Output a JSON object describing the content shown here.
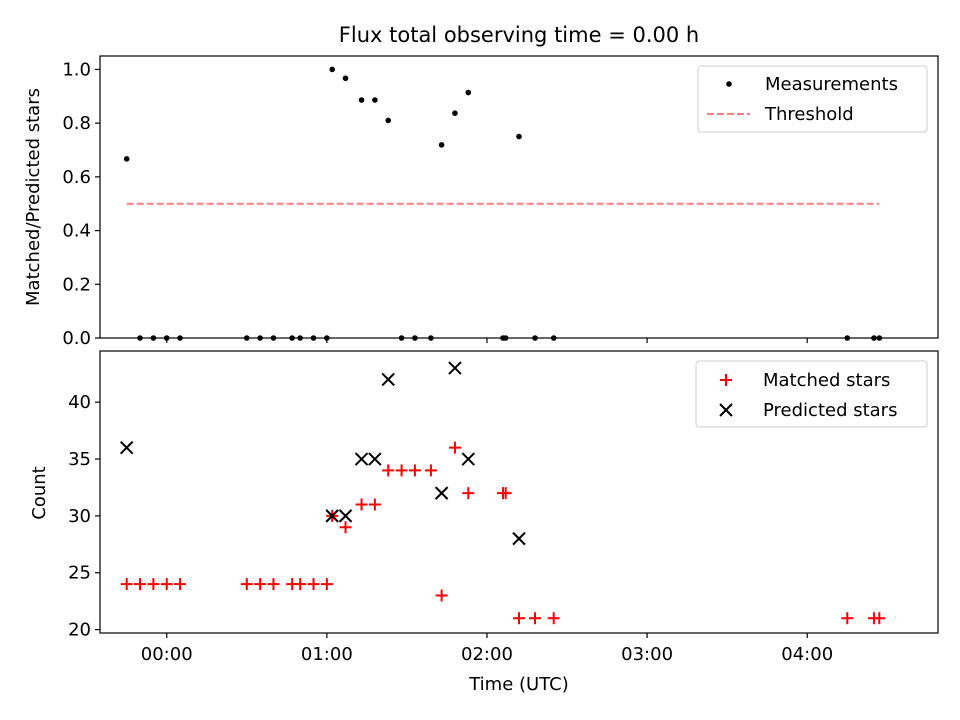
{
  "chart_data": [
    {
      "type": "scatter",
      "title": "Flux total observing time = 0.00 h",
      "xlabel": "",
      "ylabel": "Matched/Predicted stars",
      "xlim": [
        "23:35",
        "04:49"
      ],
      "ylim": [
        0.0,
        1.05
      ],
      "yticks": [
        "0.0",
        "0.2",
        "0.4",
        "0.6",
        "0.8",
        "1.0"
      ],
      "legend_position": "top-right",
      "series": [
        {
          "name": "Measurements",
          "marker": "dot",
          "color": "#000000",
          "points": [
            {
              "x": "23:45",
              "y": 0.667
            },
            {
              "x": "23:50",
              "y": 0.0
            },
            {
              "x": "23:55",
              "y": 0.0
            },
            {
              "x": "00:00",
              "y": 0.0
            },
            {
              "x": "00:05",
              "y": 0.0
            },
            {
              "x": "00:30",
              "y": 0.0
            },
            {
              "x": "00:35",
              "y": 0.0
            },
            {
              "x": "00:40",
              "y": 0.0
            },
            {
              "x": "00:47",
              "y": 0.0
            },
            {
              "x": "00:50",
              "y": 0.0
            },
            {
              "x": "00:55",
              "y": 0.0
            },
            {
              "x": "01:00",
              "y": 0.0
            },
            {
              "x": "01:02",
              "y": 1.0
            },
            {
              "x": "01:07",
              "y": 0.967
            },
            {
              "x": "01:13",
              "y": 0.886
            },
            {
              "x": "01:18",
              "y": 0.886
            },
            {
              "x": "01:23",
              "y": 0.81
            },
            {
              "x": "01:28",
              "y": 0.0
            },
            {
              "x": "01:33",
              "y": 0.0
            },
            {
              "x": "01:39",
              "y": 0.0
            },
            {
              "x": "01:43",
              "y": 0.719
            },
            {
              "x": "01:48",
              "y": 0.837
            },
            {
              "x": "01:53",
              "y": 0.914
            },
            {
              "x": "02:06",
              "y": 0.0
            },
            {
              "x": "02:07",
              "y": 0.0
            },
            {
              "x": "02:12",
              "y": 0.75
            },
            {
              "x": "02:18",
              "y": 0.0
            },
            {
              "x": "02:25",
              "y": 0.0
            },
            {
              "x": "04:15",
              "y": 0.0
            },
            {
              "x": "04:25",
              "y": 0.0
            },
            {
              "x": "04:27",
              "y": 0.0
            }
          ]
        },
        {
          "name": "Threshold",
          "marker": "dashed-line",
          "color": "#ff7f7f",
          "points": [
            {
              "x": "23:45",
              "y": 0.5
            },
            {
              "x": "04:27",
              "y": 0.5
            }
          ]
        }
      ]
    },
    {
      "type": "scatter",
      "title": "",
      "xlabel": "Time (UTC)",
      "ylabel": "Count",
      "xlim": [
        "23:35",
        "04:49"
      ],
      "ylim": [
        19.7,
        44.5
      ],
      "yticks": [
        "20",
        "25",
        "30",
        "35",
        "40"
      ],
      "xticks": [
        "00:00",
        "01:00",
        "02:00",
        "03:00",
        "04:00"
      ],
      "legend_position": "top-right",
      "series": [
        {
          "name": "Matched stars",
          "marker": "plus",
          "color": "#ff0000",
          "points": [
            {
              "x": "23:45",
              "y": 24
            },
            {
              "x": "23:50",
              "y": 24
            },
            {
              "x": "23:55",
              "y": 24
            },
            {
              "x": "00:00",
              "y": 24
            },
            {
              "x": "00:05",
              "y": 24
            },
            {
              "x": "00:30",
              "y": 24
            },
            {
              "x": "00:35",
              "y": 24
            },
            {
              "x": "00:40",
              "y": 24
            },
            {
              "x": "00:47",
              "y": 24
            },
            {
              "x": "00:50",
              "y": 24
            },
            {
              "x": "00:55",
              "y": 24
            },
            {
              "x": "01:00",
              "y": 24
            },
            {
              "x": "01:02",
              "y": 30
            },
            {
              "x": "01:07",
              "y": 29
            },
            {
              "x": "01:13",
              "y": 31
            },
            {
              "x": "01:18",
              "y": 31
            },
            {
              "x": "01:23",
              "y": 34
            },
            {
              "x": "01:28",
              "y": 34
            },
            {
              "x": "01:33",
              "y": 34
            },
            {
              "x": "01:39",
              "y": 34
            },
            {
              "x": "01:43",
              "y": 23
            },
            {
              "x": "01:48",
              "y": 36
            },
            {
              "x": "01:53",
              "y": 32
            },
            {
              "x": "02:06",
              "y": 32
            },
            {
              "x": "02:07",
              "y": 32
            },
            {
              "x": "02:12",
              "y": 21
            },
            {
              "x": "02:18",
              "y": 21
            },
            {
              "x": "02:25",
              "y": 21
            },
            {
              "x": "04:15",
              "y": 21
            },
            {
              "x": "04:25",
              "y": 21
            },
            {
              "x": "04:27",
              "y": 21
            }
          ]
        },
        {
          "name": "Predicted stars",
          "marker": "x",
          "color": "#000000",
          "points": [
            {
              "x": "23:45",
              "y": 36
            },
            {
              "x": "01:02",
              "y": 30
            },
            {
              "x": "01:07",
              "y": 30
            },
            {
              "x": "01:13",
              "y": 35
            },
            {
              "x": "01:18",
              "y": 35
            },
            {
              "x": "01:23",
              "y": 42
            },
            {
              "x": "01:43",
              "y": 32
            },
            {
              "x": "01:48",
              "y": 43
            },
            {
              "x": "01:53",
              "y": 35
            },
            {
              "x": "02:12",
              "y": 28
            }
          ]
        }
      ]
    }
  ]
}
